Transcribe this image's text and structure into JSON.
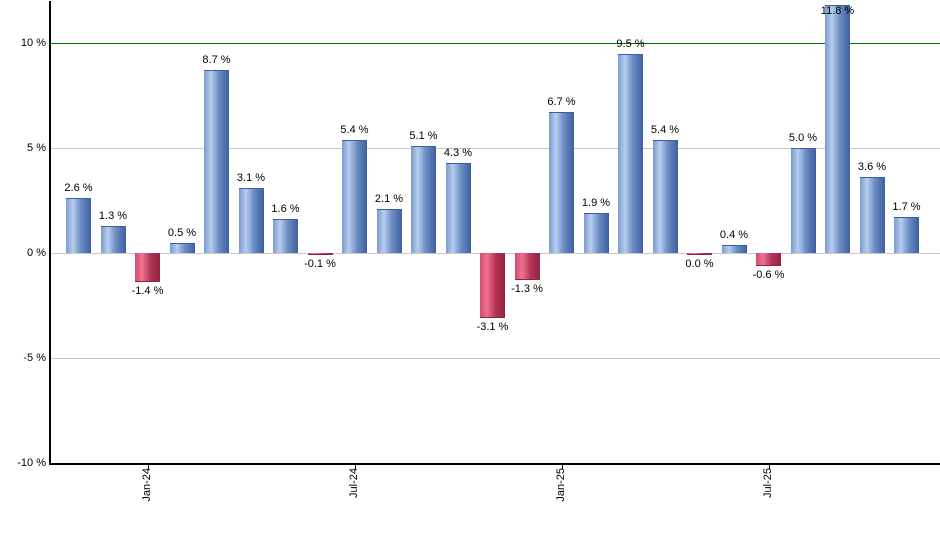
{
  "chart": {
    "background": "#ffffff",
    "text_color": "#000000",
    "axis_color": "#000000",
    "grid_color": "#c9c9c9"
  },
  "chart_data": {
    "type": "bar",
    "title": "",
    "xlabel": "",
    "ylabel": "",
    "ylim": [
      -10,
      12
    ],
    "grid": true,
    "values": [
      2.6,
      1.3,
      -1.4,
      0.5,
      8.7,
      3.1,
      1.6,
      -0.1,
      5.4,
      2.1,
      5.1,
      4.3,
      -3.1,
      -1.3,
      6.7,
      1.9,
      9.5,
      5.4,
      0.0,
      0.4,
      -0.6,
      5.0,
      11.8,
      3.6,
      1.7
    ],
    "bar_labels": [
      "2.6 %",
      "1.3 %",
      "-1.4 %",
      "0.5 %",
      "8.7 %",
      "3.1 %",
      "1.6 %",
      "-0.1 %",
      "5.4 %",
      "2.1 %",
      "5.1 %",
      "4.3 %",
      "-3.1 %",
      "-1.3 %",
      "6.7 %",
      "1.9 %",
      "9.5 %",
      "5.4 %",
      "0.0 %",
      "0.4 %",
      "-0.6 %",
      "5.0 %",
      "11.8 %",
      "3.6 %",
      "1.7 %"
    ],
    "x_ticks": [
      {
        "label": "Jan-24",
        "bar_index": 2
      },
      {
        "label": "Jul-24",
        "bar_index": 8
      },
      {
        "label": "Jan-25",
        "bar_index": 14
      },
      {
        "label": "Jul-25",
        "bar_index": 20
      }
    ],
    "y_ticks": [
      {
        "label": "10 %",
        "value": 10
      },
      {
        "label": "5 %",
        "value": 5
      },
      {
        "label": "0 %",
        "value": 0
      },
      {
        "label": "-5 %",
        "value": -5
      },
      {
        "label": "-10 %",
        "value": -10
      }
    ],
    "reference_line": {
      "value": 10,
      "color": "#007800"
    },
    "positive_bar_gradient": [
      "#7a9bce",
      "#b7cdee",
      "#6d8fc6",
      "#3e5f9c"
    ],
    "negative_bar_gradient": [
      "#d44a6c",
      "#ee7390",
      "#b53457",
      "#8e2343"
    ],
    "positive_bar_edge": "#3e5f9c",
    "negative_bar_edge": "#8e2343"
  }
}
